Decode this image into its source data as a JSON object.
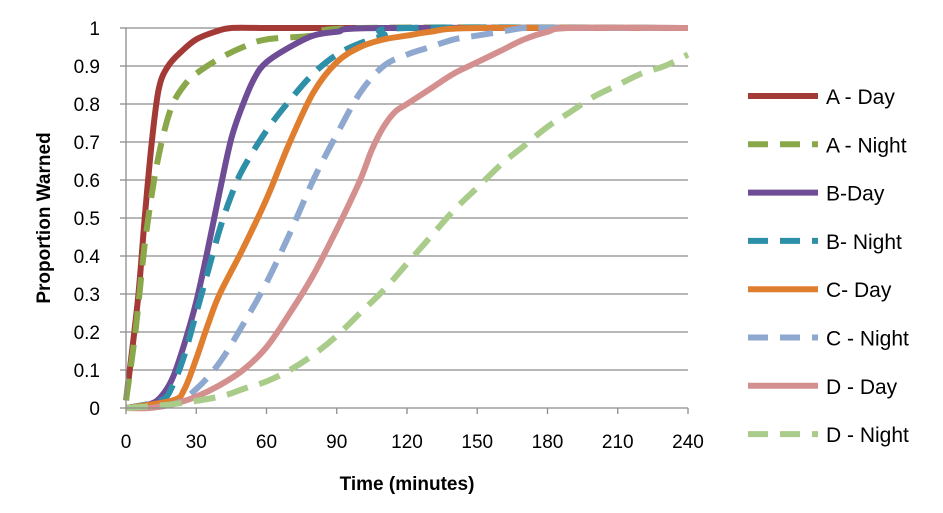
{
  "chart_data": {
    "type": "line",
    "title": "",
    "xlabel": "Time (minutes)",
    "ylabel": "Proportion Warned",
    "xlim": [
      0,
      240
    ],
    "ylim": [
      0,
      1
    ],
    "xticks": [
      0,
      30,
      60,
      90,
      120,
      150,
      180,
      210,
      240
    ],
    "yticks": [
      0,
      0.1,
      0.2,
      0.3,
      0.4,
      0.5,
      0.6,
      0.7,
      0.8,
      0.9,
      1
    ],
    "ytick_labels": [
      "0",
      "0.1",
      "0.2",
      "0.3",
      "0.4",
      "0.5",
      "0.6",
      "0.7",
      "0.8",
      "0.9",
      "1"
    ],
    "grid": "horizontal",
    "legend": "right",
    "series": [
      {
        "name": "A - Day",
        "color": "#A33A36",
        "dash": "solid",
        "x": [
          0,
          5,
          8,
          11,
          14,
          18,
          24,
          30,
          38,
          45,
          60,
          90,
          240
        ],
        "y": [
          0.02,
          0.28,
          0.5,
          0.7,
          0.84,
          0.9,
          0.94,
          0.97,
          0.99,
          1.0,
          1.0,
          1.0,
          1.0
        ]
      },
      {
        "name": "A - Night",
        "color": "#8AA84A",
        "dash": "dashed",
        "x": [
          0,
          4,
          8,
          12,
          16,
          20,
          25,
          30,
          40,
          50,
          60,
          80,
          100,
          240
        ],
        "y": [
          0.02,
          0.2,
          0.43,
          0.6,
          0.72,
          0.8,
          0.85,
          0.88,
          0.92,
          0.95,
          0.97,
          0.98,
          1.0,
          1.0
        ]
      },
      {
        "name": "B-Day",
        "color": "#6F4C96",
        "dash": "solid",
        "x": [
          0,
          10,
          15,
          20,
          25,
          30,
          35,
          40,
          45,
          50,
          55,
          60,
          70,
          80,
          90,
          110,
          240
        ],
        "y": [
          0.0,
          0.01,
          0.03,
          0.08,
          0.17,
          0.28,
          0.42,
          0.57,
          0.71,
          0.8,
          0.87,
          0.91,
          0.95,
          0.98,
          0.99,
          1.0,
          1.0
        ]
      },
      {
        "name": "B- Night",
        "color": "#2E8FA8",
        "dash": "dashed",
        "x": [
          0,
          15,
          20,
          25,
          30,
          35,
          40,
          45,
          50,
          60,
          70,
          80,
          90,
          100,
          110,
          120,
          240
        ],
        "y": [
          0.0,
          0.02,
          0.06,
          0.14,
          0.25,
          0.36,
          0.47,
          0.56,
          0.63,
          0.73,
          0.81,
          0.88,
          0.93,
          0.96,
          0.98,
          1.0,
          1.0
        ]
      },
      {
        "name": "C- Day",
        "color": "#E07E30",
        "dash": "solid",
        "x": [
          0,
          20,
          25,
          30,
          35,
          40,
          50,
          60,
          70,
          80,
          90,
          100,
          110,
          120,
          130,
          150,
          240
        ],
        "y": [
          0.0,
          0.02,
          0.05,
          0.13,
          0.22,
          0.3,
          0.42,
          0.55,
          0.7,
          0.83,
          0.91,
          0.95,
          0.97,
          0.98,
          0.99,
          1.0,
          1.0
        ]
      },
      {
        "name": "C - Night",
        "color": "#8EA8D0",
        "dash": "dashed",
        "x": [
          0,
          20,
          30,
          40,
          50,
          60,
          70,
          80,
          90,
          100,
          110,
          120,
          130,
          140,
          150,
          160,
          170,
          180,
          240
        ],
        "y": [
          0.0,
          0.01,
          0.05,
          0.12,
          0.22,
          0.33,
          0.46,
          0.6,
          0.72,
          0.83,
          0.9,
          0.93,
          0.95,
          0.97,
          0.98,
          0.99,
          1.0,
          1.0,
          1.0
        ]
      },
      {
        "name": "D - Day",
        "color": "#D4908E",
        "dash": "solid",
        "x": [
          0,
          10,
          20,
          30,
          40,
          50,
          60,
          70,
          80,
          90,
          100,
          105,
          110,
          115,
          120,
          130,
          140,
          150,
          160,
          170,
          180,
          190,
          240
        ],
        "y": [
          0.0,
          0.0,
          0.01,
          0.03,
          0.06,
          0.1,
          0.16,
          0.25,
          0.35,
          0.47,
          0.6,
          0.68,
          0.74,
          0.78,
          0.8,
          0.84,
          0.88,
          0.91,
          0.94,
          0.97,
          0.99,
          1.0,
          1.0
        ]
      },
      {
        "name": "D - Night",
        "color": "#A9CC8A",
        "dash": "dashed",
        "x": [
          0,
          20,
          40,
          50,
          60,
          70,
          80,
          90,
          100,
          110,
          120,
          130,
          140,
          150,
          160,
          170,
          180,
          190,
          200,
          210,
          220,
          230,
          240
        ],
        "y": [
          0.0,
          0.01,
          0.03,
          0.05,
          0.07,
          0.1,
          0.14,
          0.19,
          0.25,
          0.31,
          0.38,
          0.45,
          0.52,
          0.58,
          0.64,
          0.69,
          0.74,
          0.78,
          0.82,
          0.85,
          0.88,
          0.9,
          0.93
        ]
      }
    ]
  }
}
